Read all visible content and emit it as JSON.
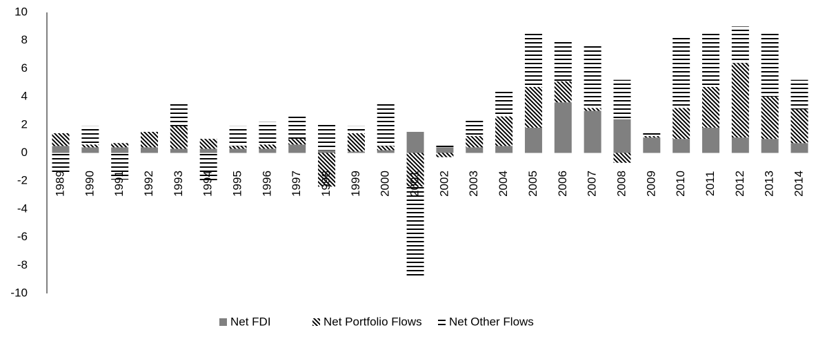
{
  "chart_data": {
    "type": "stacked_bar",
    "categories": [
      "1989",
      "1990",
      "1991",
      "1992",
      "1993",
      "1994",
      "1995",
      "1996",
      "1997",
      "1998",
      "1999",
      "2000",
      "2001",
      "2002",
      "2003",
      "2004",
      "2005",
      "2006",
      "2007",
      "2008",
      "2009",
      "2010",
      "2011",
      "2012",
      "2013",
      "2014"
    ],
    "series": [
      {
        "name": "Net FDI",
        "color": "#808080",
        "pattern": "solid",
        "values": [
          0.5,
          0.4,
          0.4,
          0.4,
          0.3,
          0.3,
          0.3,
          0.3,
          0.6,
          0.2,
          0.1,
          0.2,
          1.5,
          0.4,
          0.4,
          0.5,
          1.8,
          3.6,
          3.0,
          2.4,
          1.1,
          1.0,
          1.8,
          1.1,
          1.0,
          0.7
        ]
      },
      {
        "name": "Net Portfolio Flows",
        "color": "#000000",
        "pattern": "diagonal",
        "values": [
          0.9,
          0.2,
          0.3,
          1.1,
          1.6,
          0.7,
          0.2,
          0.3,
          0.4,
          -2.4,
          1.3,
          0.3,
          -2.4,
          -0.3,
          0.8,
          2.1,
          2.9,
          1.5,
          0.2,
          -0.7,
          0.1,
          2.2,
          2.9,
          5.3,
          3.0,
          2.4
        ]
      },
      {
        "name": "Net Other Flows",
        "color": "#000000",
        "pattern": "horizontal",
        "values": [
          -1.5,
          1.3,
          -1.9,
          0,
          1.7,
          -2.0,
          1.4,
          1.6,
          1.7,
          1.9,
          0.5,
          3.1,
          -6.4,
          0.2,
          1.1,
          1.8,
          3.9,
          2.9,
          4.4,
          2.8,
          0.3,
          5.0,
          3.9,
          2.6,
          4.6,
          2.1
        ]
      }
    ],
    "ylim": [
      -10,
      10
    ],
    "yticks": [
      -10,
      -8,
      -6,
      -4,
      -2,
      0,
      2,
      4,
      6,
      8,
      10
    ],
    "grid": false,
    "legend": "bottom"
  }
}
